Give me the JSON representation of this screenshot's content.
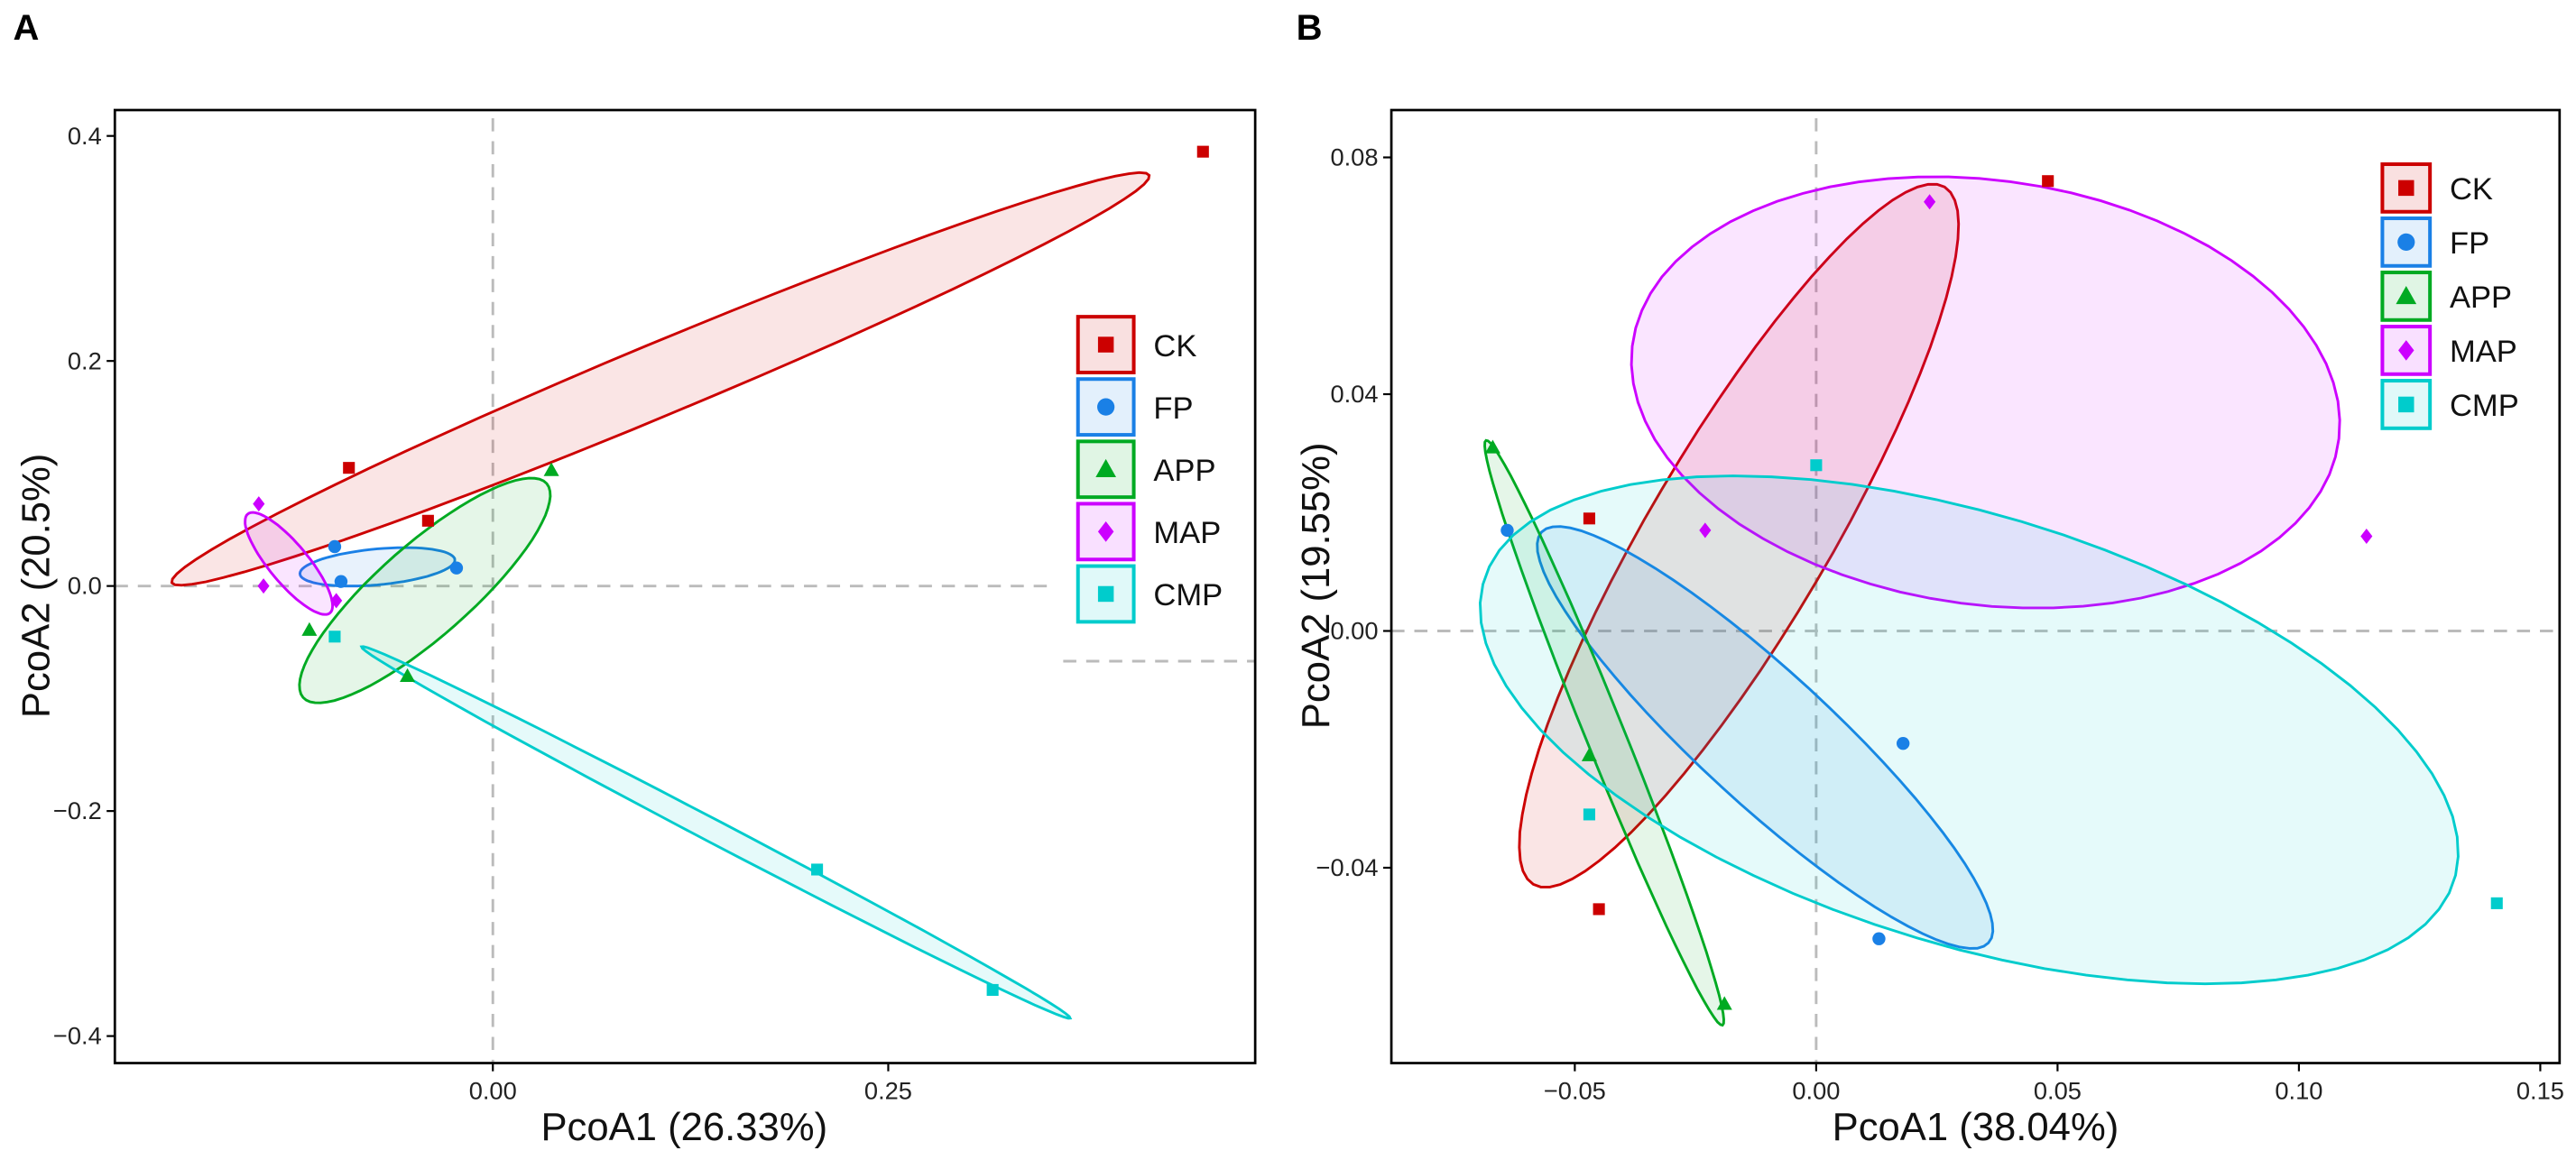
{
  "chart_data": [
    {
      "type": "scatter",
      "panel_label": "A",
      "xlabel": "PcoA1 (26.33%)",
      "ylabel": "PcoA2 (20.5%)",
      "xlim": [
        -0.239,
        0.482
      ],
      "ylim": [
        -0.424,
        0.423
      ],
      "xticks": [
        {
          "v": 0.0,
          "label": "0.00"
        },
        {
          "v": 0.25,
          "label": "0.25"
        }
      ],
      "yticks": [
        {
          "v": 0.4,
          "label": "0.4"
        },
        {
          "v": 0.2,
          "label": "0.2"
        },
        {
          "v": 0.0,
          "label": "0.0"
        },
        {
          "v": -0.2,
          "label": "−0.2"
        },
        {
          "v": -0.4,
          "label": "−0.4"
        }
      ],
      "legend_position": "right",
      "series": [
        {
          "name": "CK",
          "color": "#cc0000",
          "shape": "square",
          "points": [
            [
              -0.091,
              0.105
            ],
            [
              -0.041,
              0.058
            ],
            [
              0.449,
              0.386
            ]
          ],
          "ellipse": {
            "center": [
              0.106,
              0.184
            ],
            "a": [
              0.309,
              0.181
            ],
            "b": [
              0.0087,
              -0.0296
            ]
          }
        },
        {
          "name": "FP",
          "color": "#1a80e6",
          "shape": "circle",
          "points": [
            [
              -0.1,
              0.035
            ],
            [
              -0.096,
              0.004
            ],
            [
              -0.023,
              0.016
            ]
          ],
          "ellipse": {
            "center": [
              -0.073,
              0.017
            ],
            "a": [
              0.049,
              0.006
            ],
            "b": [
              0.0,
              -0.016
            ]
          }
        },
        {
          "name": "APP",
          "color": "#00aa22",
          "shape": "triangle",
          "points": [
            [
              -0.116,
              -0.039
            ],
            [
              -0.054,
              -0.08
            ],
            [
              0.037,
              0.103
            ]
          ],
          "ellipse": {
            "center": [
              -0.043,
              -0.004
            ],
            "a": [
              0.077,
              0.095
            ],
            "b": [
              0.019,
              -0.031
            ]
          }
        },
        {
          "name": "MAP",
          "color": "#cc00ff",
          "shape": "diamond",
          "points": [
            [
              -0.148,
              0.073
            ],
            [
              -0.145,
              0.0
            ],
            [
              -0.099,
              -0.013
            ]
          ],
          "ellipse": {
            "center": [
              -0.129,
              0.02
            ],
            "a": [
              0.026,
              -0.044
            ],
            "b": [
              0.0095,
              0.011
            ]
          }
        },
        {
          "name": "CMP",
          "color": "#00cccc",
          "shape": "square",
          "points": [
            [
              -0.1,
              -0.045
            ],
            [
              0.205,
              -0.252
            ],
            [
              0.316,
              -0.359
            ]
          ],
          "ellipse": {
            "center": [
              0.141,
              -0.219
            ],
            "a": [
              0.224,
              -0.165
            ],
            "b": [
              0.0033,
              0.009
            ]
          }
        }
      ]
    },
    {
      "type": "scatter",
      "panel_label": "B",
      "xlabel": "PcoA1 (38.04%)",
      "ylabel": "PcoA2 (19.55%)",
      "xlim": [
        -0.088,
        0.154
      ],
      "ylim": [
        -0.073,
        0.088
      ],
      "xticks": [
        {
          "v": -0.05,
          "label": "−0.05"
        },
        {
          "v": 0.0,
          "label": "0.00"
        },
        {
          "v": 0.05,
          "label": "0.05"
        },
        {
          "v": 0.1,
          "label": "0.10"
        },
        {
          "v": 0.15,
          "label": "0.15"
        }
      ],
      "yticks": [
        {
          "v": 0.08,
          "label": "0.08"
        },
        {
          "v": 0.04,
          "label": "0.04"
        },
        {
          "v": 0.0,
          "label": "0.00"
        },
        {
          "v": -0.04,
          "label": "−0.04"
        }
      ],
      "legend_position": "top-right",
      "series": [
        {
          "name": "CK",
          "color": "#cc0000",
          "shape": "square",
          "points": [
            [
              0.048,
              0.076
            ],
            [
              -0.047,
              0.019
            ],
            [
              -0.045,
              -0.047
            ]
          ],
          "ellipse": {
            "center": [
              -0.016,
              0.0161
            ],
            "a": [
              0.0426,
              0.0589
            ],
            "b": [
              0.016,
              -0.0078
            ]
          }
        },
        {
          "name": "FP",
          "color": "#1a80e6",
          "shape": "circle",
          "points": [
            [
              -0.064,
              0.017
            ],
            [
              0.018,
              -0.019
            ],
            [
              0.013,
              -0.052
            ]
          ],
          "ellipse": {
            "center": [
              -0.0106,
              -0.018
            ],
            "a": [
              0.0463,
              -0.0347
            ],
            "b": [
              0.0092,
              0.0082
            ]
          }
        },
        {
          "name": "APP",
          "color": "#00aa22",
          "shape": "triangle",
          "points": [
            [
              -0.067,
              0.031
            ],
            [
              -0.047,
              -0.021
            ],
            [
              -0.019,
              -0.063
            ]
          ],
          "ellipse": {
            "center": [
              -0.0439,
              -0.0172
            ],
            "a": [
              0.0245,
              -0.0494
            ],
            "b": [
              0.0037,
              0.00125
            ]
          }
        },
        {
          "name": "MAP",
          "color": "#cc00ff",
          "shape": "diamond",
          "points": [
            [
              0.0235,
              0.0725
            ],
            [
              -0.023,
              0.017
            ],
            [
              0.114,
              0.016
            ]
          ],
          "ellipse": {
            "center": [
              0.0351,
              0.0403
            ],
            "a": [
              0.0732,
              -0.0078
            ],
            "b": [
              0.0051,
              0.0356
            ]
          }
        },
        {
          "name": "CMP",
          "color": "#00cccc",
          "shape": "square",
          "points": [
            [
              0.0,
              0.028
            ],
            [
              -0.047,
              -0.031
            ],
            [
              0.141,
              -0.046
            ]
          ],
          "ellipse": {
            "center": [
              0.0317,
              -0.0167
            ],
            "a": [
              0.1011,
              -0.0181
            ],
            "b": [
              -0.0068,
              0.0389
            ]
          }
        }
      ]
    }
  ]
}
